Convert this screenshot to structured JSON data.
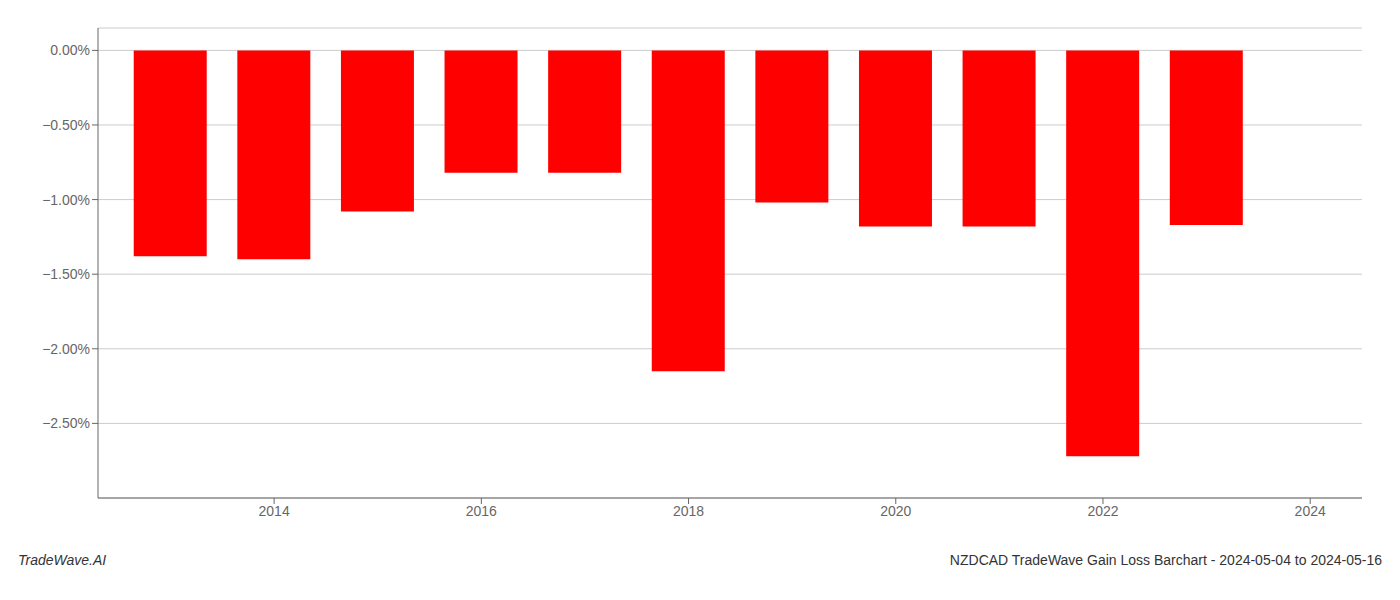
{
  "chart_data": {
    "type": "bar",
    "title": "NZDCAD TradeWave Gain Loss Barchart - 2024-05-04 to 2024-05-16",
    "annotations": [
      "TradeWave.AI"
    ],
    "x": [
      2013,
      2014,
      2015,
      2016,
      2017,
      2018,
      2019,
      2020,
      2021,
      2022,
      2023
    ],
    "values": [
      -1.38,
      -1.4,
      -1.08,
      -0.82,
      -0.82,
      -2.15,
      -1.02,
      -1.18,
      -1.18,
      -2.72,
      -1.17
    ],
    "color": "#ff0000",
    "xlim": [
      2012.3,
      2024.5
    ],
    "xticks": [
      2014,
      2016,
      2018,
      2020,
      2022,
      2024
    ],
    "ylim": [
      -3.0,
      0.15
    ],
    "yticks": [
      {
        "value": 0.0,
        "label": "0.00%"
      },
      {
        "value": -0.5,
        "label": "−0.50%"
      },
      {
        "value": -1.0,
        "label": "−1.00%"
      },
      {
        "value": -1.5,
        "label": "−1.50%"
      },
      {
        "value": -2.0,
        "label": "−2.00%"
      },
      {
        "value": -2.5,
        "label": "−2.50%"
      }
    ],
    "grid": true
  }
}
